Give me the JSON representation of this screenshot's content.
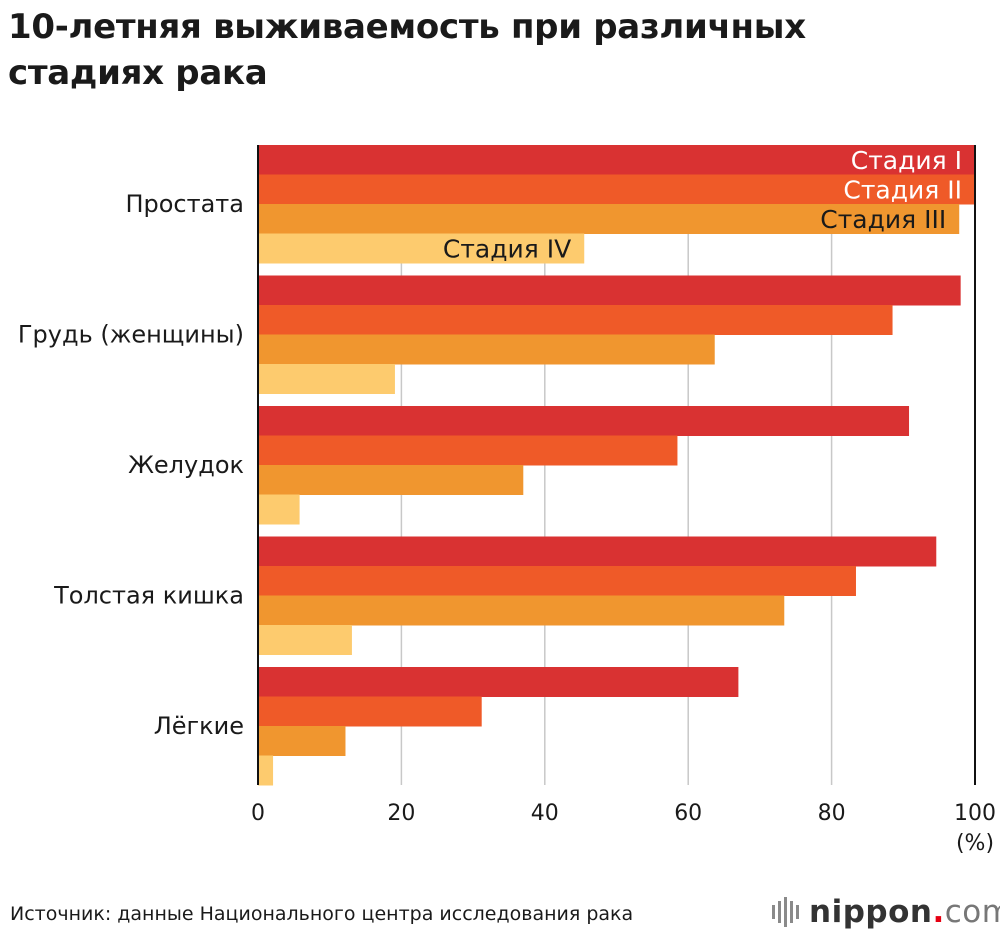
{
  "title_lines": [
    "10-летняя выживаемость при различных",
    "стадиях рака"
  ],
  "chart_data": {
    "type": "bar",
    "orientation": "horizontal",
    "title": "10-летняя выживаемость при различных стадиях рака",
    "categories": [
      "Простата",
      "Грудь (женщины)",
      "Желудок",
      "Толстая кишка",
      "Лёгкие"
    ],
    "series": [
      {
        "name": "Стадия I",
        "color": "#d93232",
        "values": [
          100,
          98.0,
          90.8,
          94.6,
          67.0
        ]
      },
      {
        "name": "Стадия II",
        "color": "#ef5a28",
        "values": [
          100,
          88.5,
          58.5,
          83.4,
          31.2
        ]
      },
      {
        "name": "Стадия III",
        "color": "#f0962f",
        "values": [
          97.8,
          63.7,
          37.0,
          73.4,
          12.2
        ]
      },
      {
        "name": "Стадия IV",
        "color": "#fdcb6e",
        "values": [
          45.5,
          19.1,
          5.8,
          13.1,
          2.1
        ]
      }
    ],
    "legend_text_colors": [
      "#ffffff",
      "#ffffff",
      "#1a1a1a",
      "#1a1a1a"
    ],
    "xlim": [
      0,
      100
    ],
    "xticks": [
      0,
      20,
      40,
      60,
      80,
      100
    ],
    "xunit": "(%)",
    "grid": true,
    "legend": "inside bars of first category"
  },
  "footer": {
    "source": "Источник: данные Национального центра исследования рака",
    "logo_brand": "nippon",
    "logo_dot": ".",
    "logo_domain": "com"
  }
}
